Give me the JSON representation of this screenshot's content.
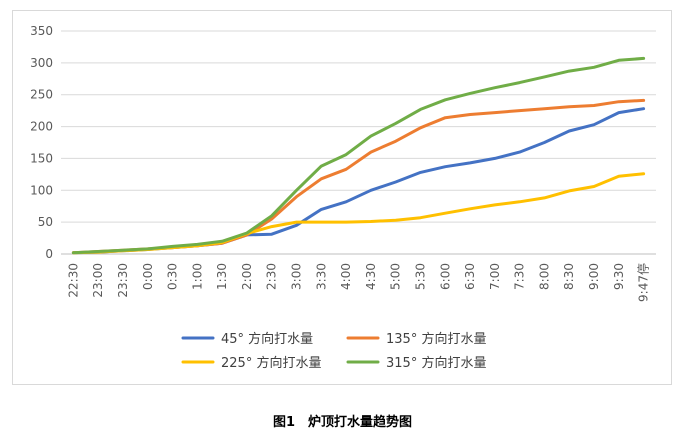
{
  "caption": "图1　炉顶打水量趋势图",
  "chart_data": {
    "type": "line",
    "title": "",
    "xlabel": "",
    "ylabel": "",
    "ylim": [
      0,
      350
    ],
    "yticks": [
      0,
      50,
      100,
      150,
      200,
      250,
      300,
      350
    ],
    "grid": "horizontal",
    "legend_position": "bottom",
    "categories": [
      "22:30",
      "23:00",
      "23:30",
      "0:00",
      "0:30",
      "1:00",
      "1:30",
      "2:00",
      "2:30",
      "3:00",
      "3:30",
      "4:00",
      "4:30",
      "5:00",
      "5:30",
      "6:00",
      "6:30",
      "7:00",
      "7:30",
      "8:00",
      "8:30",
      "9:00",
      "9:30",
      "9:47停"
    ],
    "series": [
      {
        "name": "45° 方向打水量",
        "color": "#4472c4",
        "values": [
          2,
          3,
          5,
          7,
          10,
          13,
          17,
          30,
          31,
          45,
          70,
          82,
          100,
          113,
          128,
          137,
          143,
          150,
          160,
          175,
          193,
          203,
          222,
          228
        ]
      },
      {
        "name": "135° 方向打水量",
        "color": "#ed7d31",
        "values": [
          2,
          4,
          6,
          8,
          10,
          13,
          17,
          30,
          55,
          90,
          118,
          133,
          160,
          177,
          198,
          214,
          219,
          222,
          225,
          228,
          231,
          233,
          239,
          241
        ]
      },
      {
        "name": "225° 方向打水量",
        "color": "#ffc000",
        "values": [
          2,
          3,
          5,
          7,
          10,
          13,
          18,
          32,
          43,
          50,
          50,
          50,
          51,
          53,
          57,
          64,
          71,
          77,
          82,
          88,
          99,
          106,
          122,
          126
        ]
      },
      {
        "name": "315° 方向打水量",
        "color": "#70ad47",
        "values": [
          2,
          4,
          6,
          8,
          12,
          15,
          20,
          33,
          60,
          100,
          138,
          156,
          185,
          205,
          227,
          242,
          252,
          261,
          269,
          278,
          287,
          293,
          304,
          307
        ]
      }
    ]
  }
}
